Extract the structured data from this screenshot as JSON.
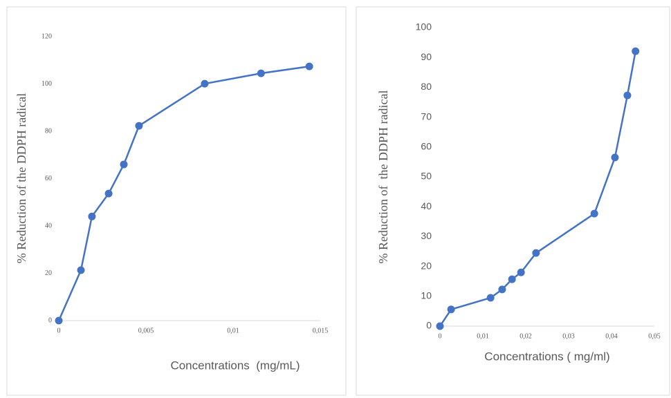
{
  "chart_data": [
    {
      "type": "line",
      "x_label": "Concentrations  (mg/mL)",
      "y_label": "% Reduction of the DDPH radical",
      "color": "#4472c4",
      "x": [
        0,
        0.00127,
        0.0019,
        0.00286,
        0.00373,
        0.0046,
        0.00837,
        0.0116,
        0.01437
      ],
      "values": [
        0,
        21.3,
        44,
        53.7,
        66,
        82.3,
        100.1,
        104.5,
        107.4
      ],
      "xlim": [
        0,
        0.015
      ],
      "ylim": [
        0,
        120
      ],
      "xticks": [
        0,
        {
          "value": 0.005,
          "label": "0,005"
        },
        {
          "value": 0.01,
          "label": "0,01"
        },
        {
          "value": 0.015,
          "label": "0,015"
        }
      ],
      "yticks": [
        0,
        20,
        40,
        60,
        80,
        100,
        120
      ]
    },
    {
      "type": "line",
      "x_label": "Concentrations ( mg/ml)",
      "y_label": "% Reduction of  the DDPH radical",
      "color": "#4472c4",
      "x": [
        0,
        0.0026,
        0.0118,
        0.0145,
        0.0168,
        0.0189,
        0.0224,
        0.036,
        0.0408,
        0.0437,
        0.0456
      ],
      "values": [
        0,
        5.6,
        9.5,
        12.3,
        15.7,
        18,
        24.5,
        37.7,
        56.5,
        77.3,
        92.1
      ],
      "xlim": [
        0,
        0.05
      ],
      "ylim": [
        0,
        100
      ],
      "xticks": [
        0,
        {
          "value": 0.01,
          "label": "0,01"
        },
        {
          "value": 0.02,
          "label": "0,02"
        },
        {
          "value": 0.03,
          "label": "0,03"
        },
        {
          "value": 0.04,
          "label": "0,04"
        },
        {
          "value": 0.05,
          "label": "0,05"
        }
      ],
      "yticks": [
        0,
        10,
        20,
        30,
        40,
        50,
        60,
        70,
        80,
        90,
        100
      ]
    }
  ]
}
